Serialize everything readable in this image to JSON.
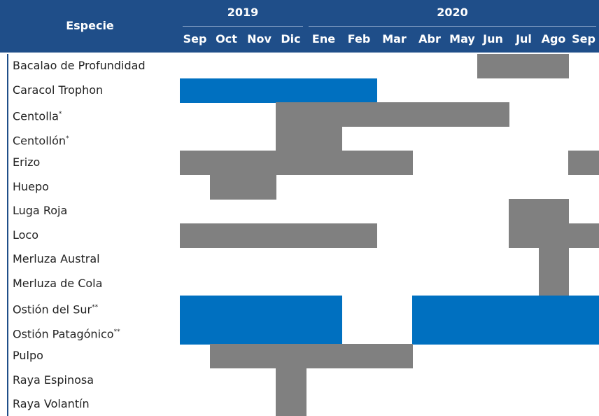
{
  "table": {
    "header": "Especie",
    "years": [
      "2019",
      "2020"
    ],
    "months": [
      "Sep",
      "Oct",
      "Nov",
      "Dic",
      "Ene",
      "Feb",
      "Mar",
      "Abr",
      "May",
      "Jun",
      "Jul",
      "Ago",
      "Sep"
    ],
    "rows": [
      {
        "name": "Bacalao de Profundidad",
        "cells": [
          null,
          null,
          null,
          null,
          null,
          null,
          null,
          null,
          null,
          "#808080",
          "#808080",
          "#808080",
          null
        ]
      },
      {
        "name": "Caracol Trophon",
        "cells": [
          "#0070c0",
          "#0070c0",
          "#0070c0",
          "#0070c0",
          "#0070c0",
          "#0070c0",
          null,
          null,
          null,
          null,
          null,
          null,
          null
        ]
      },
      {
        "name": "Centolla",
        "note": "*",
        "cells": [
          null,
          null,
          null,
          "#808080",
          "#808080",
          "#808080",
          "#808080",
          "#808080",
          "#808080",
          "#808080",
          null,
          null,
          null
        ]
      },
      {
        "name": "Centollón",
        "note": "*",
        "cells": [
          null,
          null,
          null,
          "#808080",
          "#808080",
          null,
          null,
          null,
          null,
          null,
          null,
          null,
          null
        ]
      },
      {
        "name": "Erizo",
        "cells": [
          "#808080",
          "#808080",
          "#808080",
          "#808080",
          "#808080",
          "#808080",
          "#808080",
          null,
          null,
          null,
          null,
          null,
          "#808080"
        ]
      },
      {
        "name": "Huepo",
        "cells": [
          null,
          "#808080",
          "#808080",
          null,
          null,
          null,
          null,
          null,
          null,
          null,
          null,
          null,
          null
        ]
      },
      {
        "name": "Luga Roja",
        "cells": [
          null,
          null,
          null,
          null,
          null,
          null,
          null,
          null,
          null,
          null,
          "#808080",
          "#808080",
          null
        ]
      },
      {
        "name": "Loco",
        "cells": [
          "#808080",
          "#808080",
          "#808080",
          "#808080",
          "#808080",
          "#808080",
          null,
          null,
          null,
          null,
          "#808080",
          "#808080",
          "#808080"
        ]
      },
      {
        "name": "Merluza Austral",
        "cells": [
          null,
          null,
          null,
          null,
          null,
          null,
          null,
          null,
          null,
          null,
          null,
          "#808080",
          null
        ]
      },
      {
        "name": "Merluza de Cola",
        "cells": [
          null,
          null,
          null,
          null,
          null,
          null,
          null,
          null,
          null,
          null,
          null,
          "#808080",
          null
        ]
      },
      {
        "name": "Ostión del Sur",
        "note": "**",
        "cells": [
          "#0070c0",
          "#0070c0",
          "#0070c0",
          "#0070c0",
          "#0070c0",
          null,
          null,
          "#0070c0",
          "#0070c0",
          "#0070c0",
          "#0070c0",
          "#0070c0",
          "#0070c0"
        ]
      },
      {
        "name": "Ostión Patagónico",
        "note": "**",
        "cells": [
          "#0070c0",
          "#0070c0",
          "#0070c0",
          "#0070c0",
          "#0070c0",
          null,
          null,
          "#0070c0",
          "#0070c0",
          "#0070c0",
          "#0070c0",
          "#0070c0",
          "#0070c0"
        ]
      },
      {
        "name": "Pulpo",
        "cells": [
          null,
          "#808080",
          "#808080",
          "#808080",
          "#808080",
          "#808080",
          "#808080",
          null,
          null,
          null,
          null,
          null,
          null
        ]
      },
      {
        "name": "Raya Espinosa",
        "cells": [
          null,
          null,
          null,
          "#808080",
          null,
          null,
          null,
          null,
          null,
          null,
          null,
          null,
          null
        ]
      },
      {
        "name": "Raya Volantín",
        "cells": [
          null,
          null,
          null,
          "#808080",
          null,
          null,
          null,
          null,
          null,
          null,
          null,
          null,
          null
        ]
      }
    ]
  }
}
